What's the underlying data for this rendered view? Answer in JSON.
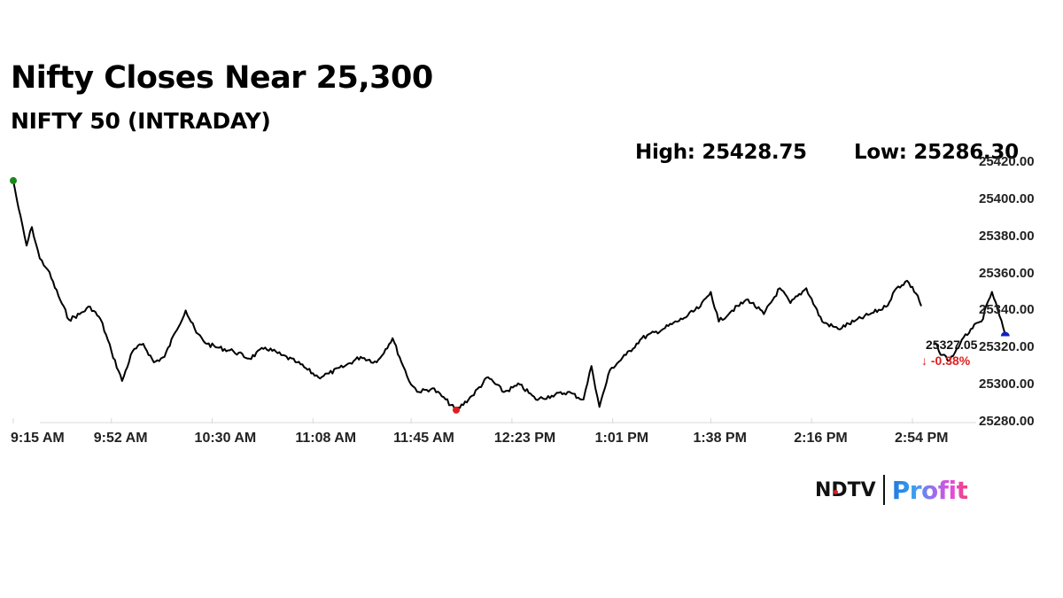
{
  "header": {
    "title": "Nifty Closes Near 25,300",
    "subtitle": "NIFTY 50 (INTRADAY)",
    "high_label": "High: 25428.75",
    "low_label": "Low: 25286.30"
  },
  "annotation": {
    "last_value": "25327.05",
    "change": "-0.38%",
    "change_color": "#e02020",
    "change_icon": "arrow-down-icon"
  },
  "branding": {
    "ndtv": "NDTV",
    "profit": "Profit"
  },
  "colors": {
    "line": "#000000",
    "open_marker": "#1a8a1a",
    "low_marker": "#e01e1e",
    "close_marker": "#1020c0",
    "axis": "#d9d9d9"
  },
  "chart_data": {
    "type": "line",
    "title": "Nifty Closes Near 25,300",
    "subtitle": "NIFTY 50 (INTRADAY)",
    "xlabel": "",
    "ylabel": "",
    "ylim": [
      25280,
      25420
    ],
    "y_ticks": [
      "25420.00",
      "25400.00",
      "25380.00",
      "25360.00",
      "25340.00",
      "25320.00",
      "25300.00",
      "25280.00"
    ],
    "x_ticks": [
      "9:15 AM",
      "9:52 AM",
      "10:30 AM",
      "11:08 AM",
      "11:45 AM",
      "12:23 PM",
      "1:01 PM",
      "1:38 PM",
      "2:16 PM",
      "2:54 PM"
    ],
    "grid": false,
    "legend": null,
    "high": 25428.75,
    "low": 25286.3,
    "close": 25327.05,
    "change_pct": -0.38,
    "series": [
      {
        "name": "NIFTY 50",
        "x": [
          "9:15 AM",
          "9:17 AM",
          "9:20 AM",
          "9:22 AM",
          "9:25 AM",
          "9:28 AM",
          "9:32 AM",
          "9:36 AM",
          "9:40 AM",
          "9:44 AM",
          "9:48 AM",
          "9:52 AM",
          "9:56 AM",
          "10:00 AM",
          "10:04 AM",
          "10:08 AM",
          "10:12 AM",
          "10:16 AM",
          "10:20 AM",
          "10:24 AM",
          "10:28 AM",
          "10:32 AM",
          "10:38 AM",
          "10:44 AM",
          "10:50 AM",
          "10:56 AM",
          "11:02 AM",
          "11:06 AM",
          "11:10 AM",
          "11:14 AM",
          "11:20 AM",
          "11:26 AM",
          "11:32 AM",
          "11:38 AM",
          "11:42 AM",
          "11:45 AM",
          "11:48 AM",
          "11:53 AM",
          "11:58 AM",
          "12:02 PM",
          "12:08 PM",
          "12:14 PM",
          "12:20 PM",
          "12:26 PM",
          "12:32 PM",
          "12:38 PM",
          "12:44 PM",
          "12:50 PM",
          "12:53 PM",
          "12:56 PM",
          "1:00 PM",
          "1:06 PM",
          "1:12 PM",
          "1:20 PM",
          "1:28 PM",
          "1:34 PM",
          "1:38 PM",
          "1:41 PM",
          "1:46 PM",
          "1:52 PM",
          "1:58 PM",
          "2:04 PM",
          "2:08 PM",
          "2:14 PM",
          "2:20 PM",
          "2:26 PM",
          "2:32 PM",
          "2:38 PM",
          "2:44 PM",
          "2:48 PM",
          "2:52 PM",
          "2:56 PM",
          "3:00 PM",
          "3:04 PM",
          "3:08 PM",
          "3:12 PM",
          "3:16 PM",
          "3:20 PM",
          "3:24 PM",
          "3:29 PM"
        ],
        "values": [
          25410,
          25395,
          25375,
          25385,
          25368,
          25362,
          25348,
          25335,
          25338,
          25342,
          25335,
          25318,
          25302,
          25318,
          25322,
          25312,
          25315,
          25328,
          25340,
          25328,
          25322,
          25320,
          25318,
          25314,
          25320,
          25316,
          25312,
          25308,
          25304,
          25306,
          25310,
          25315,
          25312,
          25325,
          25310,
          25300,
          25296,
          25298,
          25292,
          25286,
          25294,
          25304,
          25296,
          25300,
          25292,
          25294,
          25296,
          25292,
          25310,
          25288,
          25308,
          25316,
          25325,
          25330,
          25336,
          25342,
          25350,
          25334,
          25340,
          25346,
          25338,
          25352,
          25344,
          25352,
          25334,
          25330,
          25334,
          25338,
          25342,
          25352,
          25356,
          25348,
          25330,
          25318,
          25313,
          25322,
          25330,
          25334,
          25350,
          25327.05
        ]
      }
    ],
    "markers": [
      {
        "name": "open",
        "x": "9:15 AM",
        "value": 25410,
        "color": "#1a8a1a"
      },
      {
        "name": "day-low",
        "x": "12:02 PM",
        "value": 25286.3,
        "color": "#e01e1e"
      },
      {
        "name": "close",
        "x": "3:29 PM",
        "value": 25327.05,
        "color": "#1020c0"
      }
    ]
  }
}
